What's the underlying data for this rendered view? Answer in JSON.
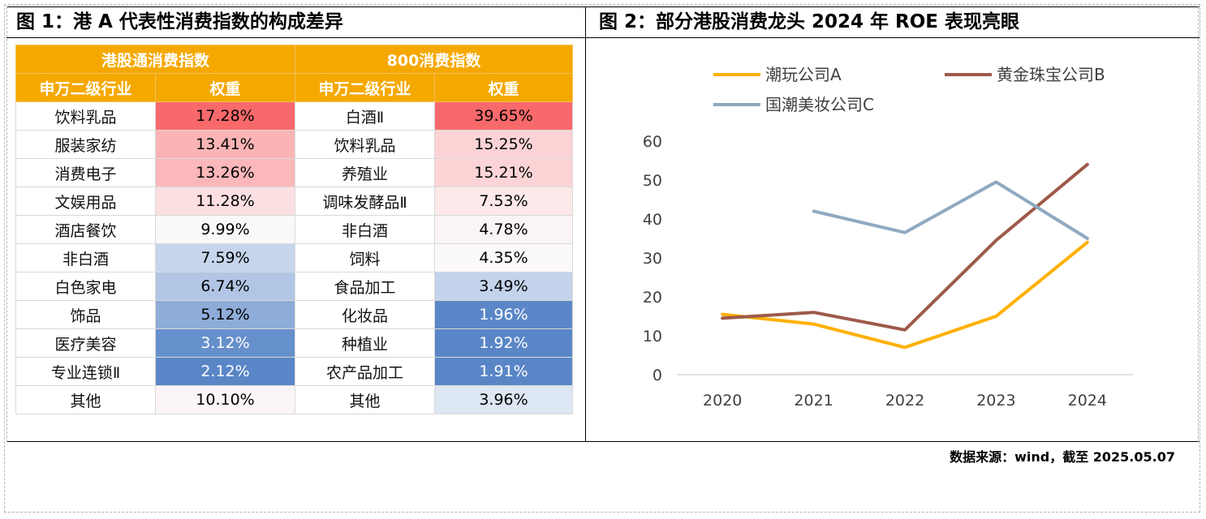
{
  "figure1": {
    "title": "图 1：港 A 代表性消费指数的构成差异",
    "left_group": "港股通消费指数",
    "right_group": "800消费指数",
    "col_industry": "申万二级行业",
    "col_weight": "权重",
    "rows": [
      {
        "l_name": "饮料乳品",
        "l_value": "17.28%",
        "l_color": "#f8696b",
        "l_text": "#000000",
        "r_name": "白酒Ⅱ",
        "r_value": "39.65%",
        "r_color": "#f8696b",
        "r_text": "#000000"
      },
      {
        "l_name": "服装家纺",
        "l_value": "13.41%",
        "l_color": "#fbb4b6",
        "l_text": "#000000",
        "r_name": "饮料乳品",
        "r_value": "15.25%",
        "r_color": "#fcd3d5",
        "r_text": "#000000"
      },
      {
        "l_name": "消费电子",
        "l_value": "13.26%",
        "l_color": "#fbb7b9",
        "l_text": "#000000",
        "r_name": "养殖业",
        "r_value": "15.21%",
        "r_color": "#fcd4d6",
        "r_text": "#000000"
      },
      {
        "l_name": "文娱用品",
        "l_value": "11.28%",
        "l_color": "#fcdfe1",
        "l_text": "#000000",
        "r_name": "调味发酵品Ⅱ",
        "r_value": "7.53%",
        "r_color": "#fde9ea",
        "r_text": "#000000"
      },
      {
        "l_name": "酒店餐饮",
        "l_value": "9.99%",
        "l_color": "#fbf8fb",
        "l_text": "#000000",
        "r_name": "非白酒",
        "r_value": "4.78%",
        "r_color": "#fbf4f6",
        "r_text": "#000000"
      },
      {
        "l_name": "非白酒",
        "l_value": "7.59%",
        "l_color": "#c6d5ec",
        "l_text": "#000000",
        "r_name": "饲料",
        "r_value": "4.35%",
        "r_color": "#fcf9fb",
        "r_text": "#000000"
      },
      {
        "l_name": "白色家电",
        "l_value": "6.74%",
        "l_color": "#b1c6e5",
        "l_text": "#000000",
        "r_name": "食品加工",
        "r_value": "3.49%",
        "r_color": "#c3d3eb",
        "r_text": "#000000"
      },
      {
        "l_name": "饰品",
        "l_value": "5.12%",
        "l_color": "#8eacd8",
        "l_text": "#000000",
        "r_name": "化妆品",
        "r_value": "1.96%",
        "r_color": "#5b87c8",
        "r_text": "#ffffff"
      },
      {
        "l_name": "医疗美容",
        "l_value": "3.12%",
        "l_color": "#6690cc",
        "l_text": "#ffffff",
        "r_name": "种植业",
        "r_value": "1.92%",
        "r_color": "#5a86c7",
        "r_text": "#ffffff"
      },
      {
        "l_name": "专业连锁Ⅱ",
        "l_value": "2.12%",
        "l_color": "#5a86c7",
        "l_text": "#ffffff",
        "r_name": "农产品加工",
        "r_value": "1.91%",
        "r_color": "#5a86c7",
        "r_text": "#ffffff"
      },
      {
        "l_name": "其他",
        "l_value": "10.10%",
        "l_color": "#fcf5f7",
        "l_text": "#000000",
        "r_name": "其他",
        "r_value": "3.96%",
        "r_color": "#dde6f3",
        "r_text": "#000000"
      }
    ]
  },
  "figure2": {
    "title": "图 2：部分港股消费龙头 2024 年 ROE 表现亮眼"
  },
  "source": "数据来源：wind，截至 2025.05.07",
  "chart_data": {
    "type": "line",
    "title": "图 2：部分港股消费龙头 2024 年 ROE 表现亮眼",
    "x": [
      "2020",
      "2021",
      "2022",
      "2023",
      "2024"
    ],
    "ylim": [
      0,
      60
    ],
    "yticks": [
      0,
      10,
      20,
      30,
      40,
      50,
      60
    ],
    "grid": false,
    "legend_position": "top",
    "series": [
      {
        "name": "潮玩公司A",
        "color": "#ffb000",
        "values": [
          15.5,
          13,
          7,
          15,
          34
        ]
      },
      {
        "name": "黄金珠宝公司B",
        "color": "#9e5a4a",
        "values": [
          14.5,
          16,
          11.5,
          34.5,
          54
        ]
      },
      {
        "name": "国潮美妆公司C",
        "color": "#8fa9c1",
        "values": [
          null,
          42,
          36.5,
          49.5,
          35
        ]
      }
    ]
  }
}
